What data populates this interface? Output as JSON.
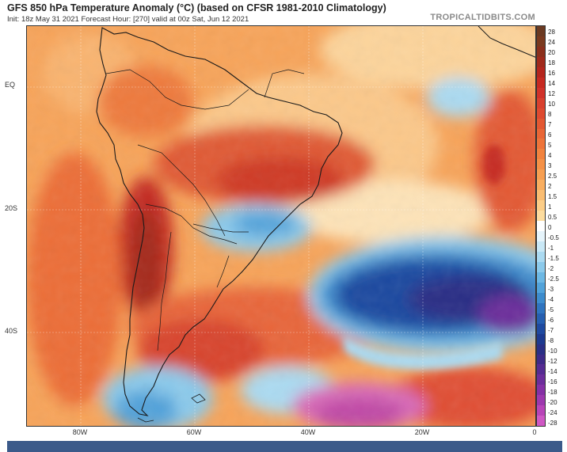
{
  "title": "GFS 850 hPa Temperature Anomaly (°C) (based on CFSR 1981-2010 Climatology)",
  "subtitle": "Init: 18z May 31 2021   Forecast Hour: [270]   valid at 00z Sat, Jun 12 2021",
  "brand": "TROPICALTIDBITS.COM",
  "lat_labels": [
    "EQ",
    "20S",
    "40S"
  ],
  "lon_labels": [
    "80W",
    "60W",
    "40W",
    "20W",
    "0"
  ],
  "colorbar": {
    "labels": [
      "28",
      "24",
      "20",
      "18",
      "16",
      "14",
      "12",
      "10",
      "8",
      "7",
      "6",
      "5",
      "4",
      "3",
      "2.5",
      "2",
      "1.5",
      "1",
      "0.5",
      "0",
      "-0.5",
      "-1",
      "-1.5",
      "-2",
      "-2.5",
      "-3",
      "-4",
      "-5",
      "-6",
      "-7",
      "-8",
      "-10",
      "-12",
      "-14",
      "-16",
      "-18",
      "-20",
      "-24",
      "-28"
    ],
    "colors": [
      "#6b3a22",
      "#7a3a1f",
      "#8b2f1c",
      "#a02a1c",
      "#b4261e",
      "#c62a22",
      "#d0322a",
      "#d8402e",
      "#de4a30",
      "#e35832",
      "#e96636",
      "#ee743a",
      "#f2833f",
      "#f59147",
      "#f79f52",
      "#f9ae60",
      "#fabd72",
      "#fccd87",
      "#fddc9e",
      "#ffffff",
      "#e6f4fb",
      "#c9e8f6",
      "#abdaf1",
      "#8ccaeb",
      "#6db8e4",
      "#52a3da",
      "#3d8ccd",
      "#2f74bf",
      "#265fb0",
      "#1f4aa0",
      "#1d3a90",
      "#2a2f86",
      "#3e2a88",
      "#552b92",
      "#6c2d9b",
      "#8530a5",
      "#9d38ae",
      "#b844b8",
      "#cf58c4"
    ]
  }
}
